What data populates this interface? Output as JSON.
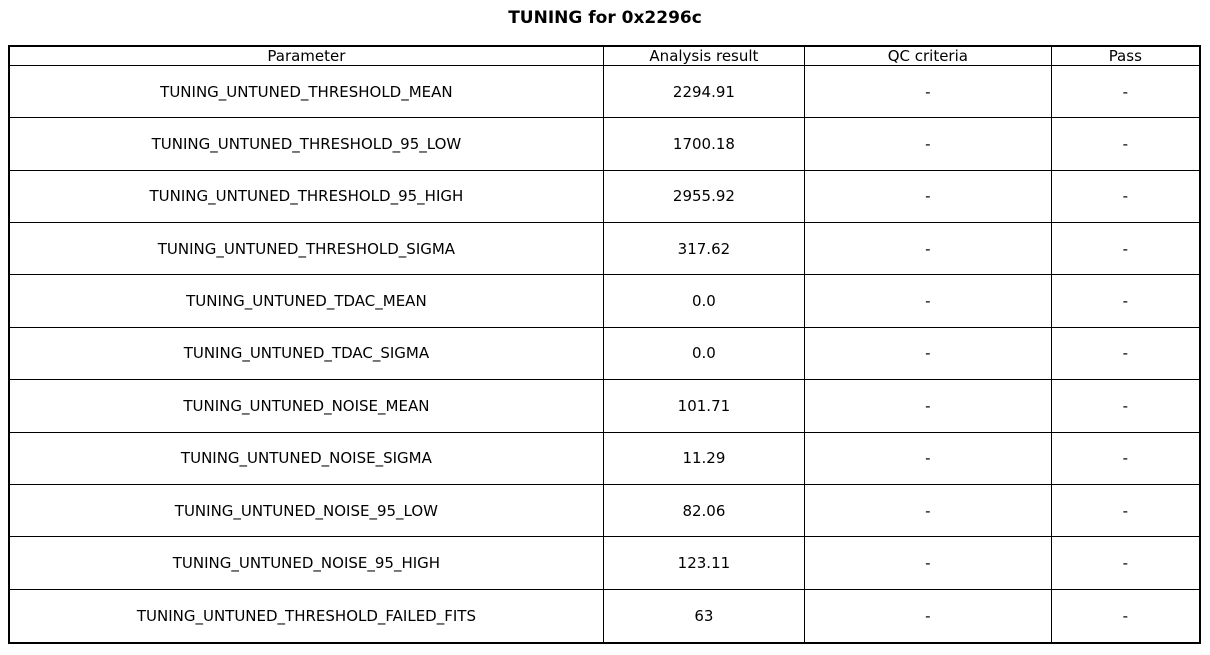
{
  "title": "TUNING for 0x2296c",
  "colors": {
    "background": "#ffffff",
    "border": "#000000",
    "text": "#000000"
  },
  "chart_data": {
    "type": "table",
    "title": "TUNING for 0x2296c",
    "columns": [
      "Parameter",
      "Analysis result",
      "QC criteria",
      "Pass"
    ],
    "rows": [
      [
        "TUNING_UNTUNED_THRESHOLD_MEAN",
        "2294.91",
        "-",
        "-"
      ],
      [
        "TUNING_UNTUNED_THRESHOLD_95_LOW",
        "1700.18",
        "-",
        "-"
      ],
      [
        "TUNING_UNTUNED_THRESHOLD_95_HIGH",
        "2955.92",
        "-",
        "-"
      ],
      [
        "TUNING_UNTUNED_THRESHOLD_SIGMA",
        "317.62",
        "-",
        "-"
      ],
      [
        "TUNING_UNTUNED_TDAC_MEAN",
        "0.0",
        "-",
        "-"
      ],
      [
        "TUNING_UNTUNED_TDAC_SIGMA",
        "0.0",
        "-",
        "-"
      ],
      [
        "TUNING_UNTUNED_NOISE_MEAN",
        "101.71",
        "-",
        "-"
      ],
      [
        "TUNING_UNTUNED_NOISE_SIGMA",
        "11.29",
        "-",
        "-"
      ],
      [
        "TUNING_UNTUNED_NOISE_95_LOW",
        "82.06",
        "-",
        "-"
      ],
      [
        "TUNING_UNTUNED_NOISE_95_HIGH",
        "123.11",
        "-",
        "-"
      ],
      [
        "TUNING_UNTUNED_THRESHOLD_FAILED_FITS",
        "63",
        "-",
        "-"
      ]
    ]
  }
}
